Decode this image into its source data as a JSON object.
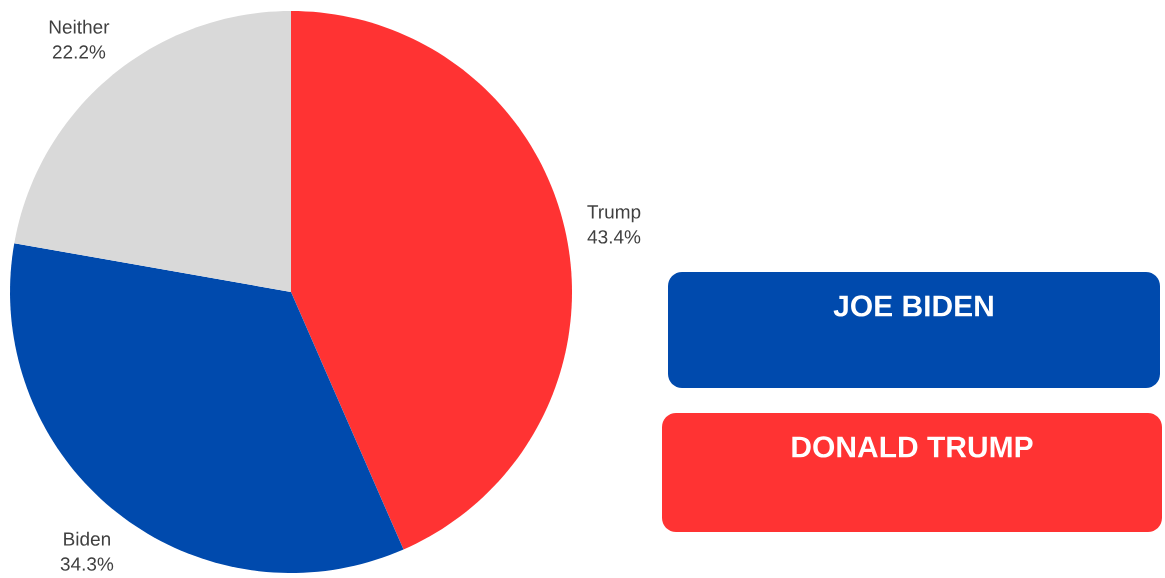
{
  "chart_data": {
    "type": "pie",
    "categories": [
      "Trump",
      "Biden",
      "Neither"
    ],
    "values": [
      43.4,
      34.3,
      22.2
    ],
    "value_labels": [
      "43.4%",
      "34.3%",
      "22.2%"
    ],
    "colors": [
      "#ff3333",
      "#004aad",
      "#d9d9d9"
    ],
    "annotations": [
      "JOE BIDEN",
      "DONALD TRUMP"
    ]
  }
}
